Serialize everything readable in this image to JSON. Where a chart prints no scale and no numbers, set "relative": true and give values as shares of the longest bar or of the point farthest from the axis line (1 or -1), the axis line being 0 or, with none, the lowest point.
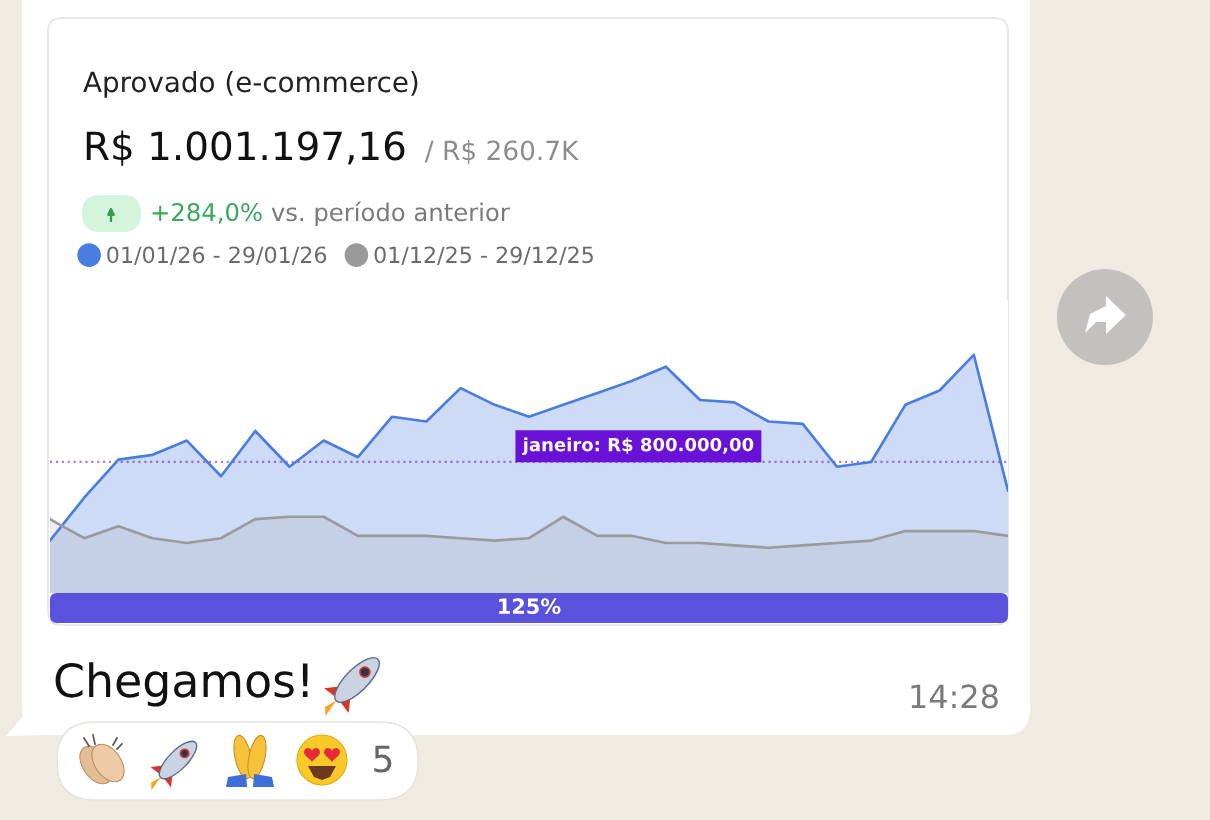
{
  "chart_data": {
    "type": "area",
    "title": "Aprovado (e-commerce)",
    "subtitle": "R$ 1.001.197,16",
    "relative": true,
    "categories": [
      null,
      null,
      null,
      null,
      null,
      null,
      null,
      null,
      null,
      null,
      null,
      null,
      null,
      null,
      null,
      null,
      null,
      null,
      null,
      null,
      null,
      null,
      null,
      null,
      null,
      null,
      null,
      null,
      null
    ],
    "series": [
      {
        "name": "01/01/26 - 29/01/26",
        "color": "#4a7de0",
        "values": [
          0.22,
          0.4,
          0.56,
          0.58,
          0.64,
          0.49,
          0.68,
          0.53,
          0.64,
          0.57,
          0.74,
          0.72,
          0.86,
          0.79,
          0.74,
          0.79,
          0.84,
          0.89,
          0.95,
          0.81,
          0.8,
          0.72,
          0.71,
          0.53,
          0.55,
          0.79,
          0.85,
          1.0,
          0.43
        ]
      },
      {
        "name": "01/12/25 - 29/12/25",
        "color": "#9a9a9a",
        "values": [
          0.31,
          0.23,
          0.28,
          0.23,
          0.21,
          0.23,
          0.31,
          0.32,
          0.32,
          0.24,
          0.24,
          0.24,
          0.23,
          0.22,
          0.23,
          0.32,
          0.24,
          0.24,
          0.21,
          0.21,
          0.2,
          0.19,
          0.2,
          0.21,
          0.22,
          0.26,
          0.26,
          0.26,
          0.24
        ]
      }
    ],
    "ref_lines": [
      {
        "axis": "y",
        "value": 0.55,
        "label": "janeiro: R$ 800.000,00",
        "color": "#6a11d8",
        "line_style": "dotted"
      }
    ],
    "legend": "top left",
    "annotations": [
      "/ R$ 260.7K",
      "+284,0%",
      "vs. período anterior",
      "125%",
      "Chegamos!",
      "14:28",
      "5"
    ]
  }
}
